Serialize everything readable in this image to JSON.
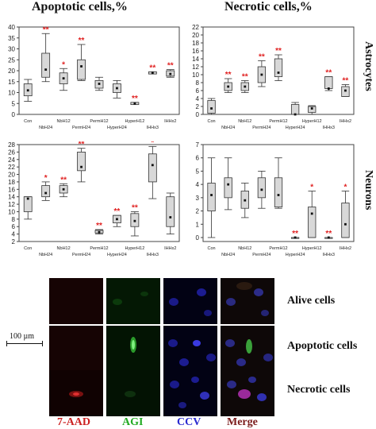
{
  "figure": {
    "column_titles": [
      "Apoptotic cells,%",
      "Necrotic cells,%"
    ],
    "row_labels": [
      "Astrocytes",
      "Neurons"
    ],
    "scale_bar": "100 µm",
    "channels": [
      "7-AAD",
      "AGI",
      "CCV",
      "Merge"
    ],
    "channel_colors": [
      "#cc2222",
      "#22aa22",
      "#2a2ad0",
      "#7a1a1a"
    ],
    "conditions": [
      "Alive cells",
      "Apoptotic cells",
      "Necrotic cells"
    ],
    "significance_color": "#e02020"
  },
  "chart_data": [
    {
      "type": "box",
      "title": "Apoptotic cells,%",
      "row": "Astrocytes",
      "ylim": [
        0,
        40
      ],
      "yticks": [
        0,
        5,
        10,
        15,
        20,
        25,
        30,
        35,
        40
      ],
      "categories": [
        "Con",
        "NbH24",
        "NbH12",
        "PermH24",
        "PermH12",
        "HyperH24",
        "HyperH12",
        "IHHx3",
        "IHHx2"
      ],
      "boxes": [
        {
          "median": 11,
          "q1": 8.5,
          "q3": 14,
          "min": 6,
          "max": 16,
          "sig": ""
        },
        {
          "median": 20.5,
          "q1": 17,
          "q3": 28,
          "min": 15,
          "max": 37,
          "sig": "**"
        },
        {
          "median": 16.5,
          "q1": 14,
          "q3": 19,
          "min": 11,
          "max": 21,
          "sig": "*"
        },
        {
          "median": 22,
          "q1": 16,
          "q3": 25,
          "min": 15.5,
          "max": 32,
          "sig": "**"
        },
        {
          "median": 14,
          "q1": 12,
          "q3": 15.5,
          "min": 11,
          "max": 17,
          "sig": ""
        },
        {
          "median": 12,
          "q1": 10,
          "q3": 14,
          "min": 7.5,
          "max": 15.5,
          "sig": ""
        },
        {
          "median": 5,
          "q1": 4.5,
          "q3": 5.5,
          "min": 4.5,
          "max": 5.5,
          "sig": "**"
        },
        {
          "median": 19,
          "q1": 18.5,
          "q3": 19.5,
          "min": 18.5,
          "max": 19.5,
          "sig": "**"
        },
        {
          "median": 18.5,
          "q1": 17.5,
          "q3": 20,
          "min": 17,
          "max": 20.5,
          "sig": "**"
        }
      ]
    },
    {
      "type": "box",
      "title": "Necrotic cells,%",
      "row": "Astrocytes",
      "ylim": [
        0,
        22
      ],
      "yticks": [
        0,
        2,
        4,
        6,
        8,
        10,
        12,
        14,
        16,
        18,
        20,
        22
      ],
      "categories": [
        "Con",
        "NbH24",
        "NbH12",
        "PermH24",
        "PermH12",
        "HyperH24",
        "HyperH12",
        "IHHx3",
        "IHHx2"
      ],
      "boxes": [
        {
          "median": 1.5,
          "q1": 0.3,
          "q3": 3.5,
          "min": 0,
          "max": 4,
          "sig": ""
        },
        {
          "median": 7,
          "q1": 6,
          "q3": 8,
          "min": 5.5,
          "max": 9,
          "sig": "**"
        },
        {
          "median": 7,
          "q1": 6,
          "q3": 8,
          "min": 5.5,
          "max": 8.5,
          "sig": "**"
        },
        {
          "median": 10,
          "q1": 8,
          "q3": 12,
          "min": 7,
          "max": 13.5,
          "sig": "**"
        },
        {
          "median": 10.5,
          "q1": 9.5,
          "q3": 14,
          "min": 8.5,
          "max": 15,
          "sig": "**"
        },
        {
          "median": 0,
          "q1": 0,
          "q3": 2.5,
          "min": 0,
          "max": 3,
          "sig": ""
        },
        {
          "median": 1.5,
          "q1": 0.5,
          "q3": 2,
          "min": 0,
          "max": 2.2,
          "sig": ""
        },
        {
          "median": 6.5,
          "q1": 6.5,
          "q3": 9.5,
          "min": 6,
          "max": 9.5,
          "sig": "**"
        },
        {
          "median": 6,
          "q1": 4.5,
          "q3": 7,
          "min": 4.5,
          "max": 7.5,
          "sig": "**"
        }
      ]
    },
    {
      "type": "box",
      "title": "Apoptotic cells,%",
      "row": "Neurons",
      "ylim": [
        2,
        28
      ],
      "yticks": [
        2,
        4,
        6,
        8,
        10,
        12,
        14,
        16,
        18,
        20,
        22,
        24,
        26,
        28
      ],
      "categories": [
        "Con",
        "NbH24",
        "NbH12",
        "PermH24",
        "PermH12",
        "HyperH24",
        "HyperH12",
        "IHHx3",
        "IHHx2"
      ],
      "boxes": [
        {
          "median": 13.5,
          "q1": 10,
          "q3": 14,
          "min": 8,
          "max": 14,
          "sig": ""
        },
        {
          "median": 15,
          "q1": 14,
          "q3": 17,
          "min": 13,
          "max": 18,
          "sig": "*"
        },
        {
          "median": 16,
          "q1": 15,
          "q3": 17,
          "min": 14,
          "max": 17.5,
          "sig": "**"
        },
        {
          "median": 22,
          "q1": 21,
          "q3": 26,
          "min": 18,
          "max": 27,
          "sig": "**"
        },
        {
          "median": 4.5,
          "q1": 4.3,
          "q3": 5,
          "min": 4,
          "max": 5.2,
          "sig": "**"
        },
        {
          "median": 8,
          "q1": 7,
          "q3": 9,
          "min": 6,
          "max": 9,
          "sig": "**"
        },
        {
          "median": 7.5,
          "q1": 6,
          "q3": 9.5,
          "min": 3.5,
          "max": 10,
          "sig": "**"
        },
        {
          "median": 22.5,
          "q1": 18,
          "q3": 25.5,
          "min": 13.5,
          "max": 27.5,
          "sig": "*"
        },
        {
          "median": 8.5,
          "q1": 6,
          "q3": 14,
          "min": 4,
          "max": 15,
          "sig": ""
        }
      ]
    },
    {
      "type": "box",
      "title": "Necrotic cells,%",
      "row": "Neurons",
      "ylim": [
        -0.3,
        7
      ],
      "yticks": [
        0,
        1,
        2,
        3,
        4,
        5,
        6,
        7
      ],
      "categories": [
        "Con",
        "NbH24",
        "NbH12",
        "PermH24",
        "PermH12",
        "HyperH24",
        "HyperH12",
        "IHHx3",
        "IHHx2"
      ],
      "boxes": [
        {
          "median": 3.2,
          "q1": 2,
          "q3": 4.1,
          "min": 0,
          "max": 6,
          "sig": ""
        },
        {
          "median": 4,
          "q1": 3,
          "q3": 4.5,
          "min": 2.1,
          "max": 6,
          "sig": ""
        },
        {
          "median": 2.8,
          "q1": 2.2,
          "q3": 3.5,
          "min": 1.5,
          "max": 4.1,
          "sig": ""
        },
        {
          "median": 3.6,
          "q1": 3,
          "q3": 4.5,
          "min": 2.2,
          "max": 5,
          "sig": ""
        },
        {
          "median": 3.2,
          "q1": 2.3,
          "q3": 4.5,
          "min": 2.2,
          "max": 6,
          "sig": ""
        },
        {
          "median": 0,
          "q1": 0,
          "q3": 0,
          "min": 0,
          "max": 0,
          "sig": "**"
        },
        {
          "median": 1.8,
          "q1": 0,
          "q3": 2.3,
          "min": 0,
          "max": 3.5,
          "sig": "*"
        },
        {
          "median": 0,
          "q1": 0,
          "q3": 0,
          "min": 0,
          "max": 0,
          "sig": "**"
        },
        {
          "median": 1,
          "q1": 0,
          "q3": 2.6,
          "min": 0,
          "max": 3.5,
          "sig": "*"
        }
      ]
    }
  ]
}
